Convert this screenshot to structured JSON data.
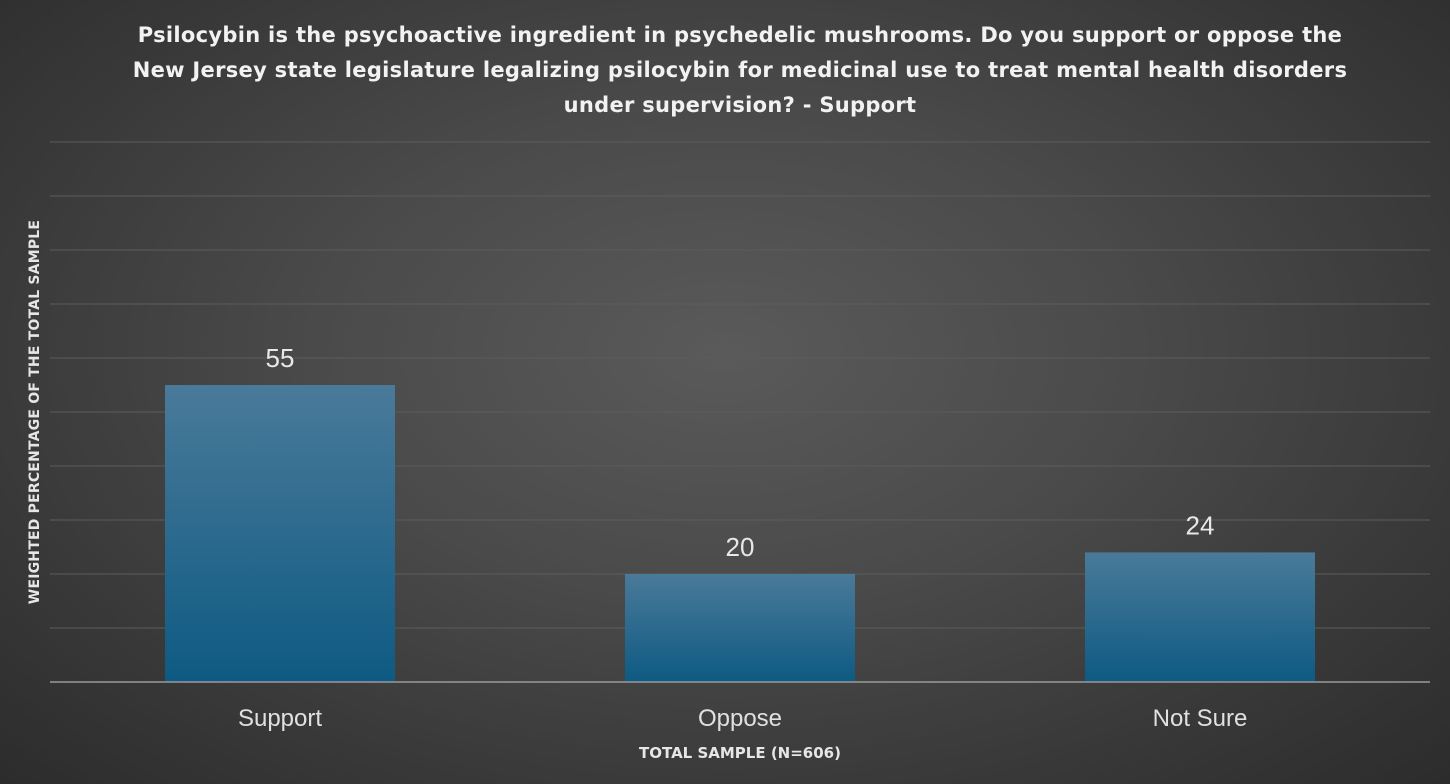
{
  "chart_data": {
    "type": "bar",
    "title": "Psilocybin is the psychoactive ingredient in psychedelic mushrooms. Do you support or oppose the New Jersey state legislature legalizing psilocybin for medicinal use to treat mental health disorders under supervision? - Support",
    "xlabel": "TOTAL SAMPLE (N=606)",
    "ylabel": "WEIGHTED PERCENTAGE OF THE TOTAL SAMPLE",
    "categories": [
      "Support",
      "Oppose",
      "Not Sure"
    ],
    "values": [
      55,
      20,
      24
    ],
    "data_labels": [
      "55",
      "20",
      "24"
    ],
    "ylim": [
      0,
      100
    ],
    "grid": true,
    "legend": "none",
    "colors": {
      "bar_top": "#4a7a9a",
      "bar_bottom": "#0e5a82",
      "background": "#4a4a4a",
      "gridline": "#5c5c5c"
    }
  }
}
